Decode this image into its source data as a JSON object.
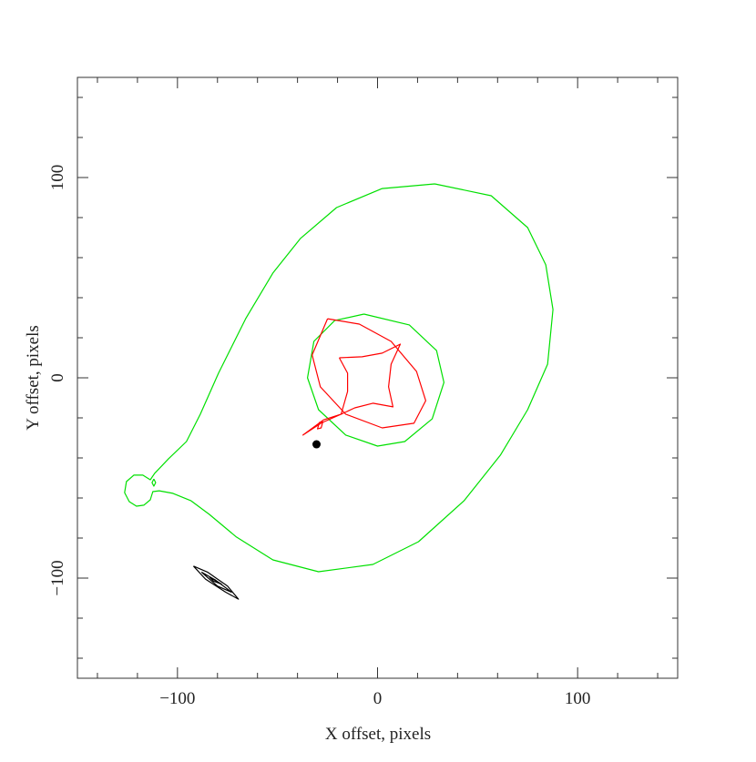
{
  "chart_data": {
    "type": "line",
    "xlabel": "X offset, pixels",
    "ylabel": "Y offset, pixels",
    "xlim": [
      -150,
      150
    ],
    "ylim": [
      -150,
      150
    ],
    "xticks": [
      {
        "value": -100,
        "label": "−100"
      },
      0,
      100
    ],
    "yticks": [
      {
        "value": -100,
        "label": "−100"
      },
      0,
      100
    ],
    "xminorticks": [
      -140,
      -120,
      -80,
      -60,
      -40,
      -20,
      20,
      40,
      60,
      80,
      120,
      140
    ],
    "yminorticks": [
      -140,
      -120,
      -80,
      -60,
      -40,
      -20,
      20,
      40,
      60,
      80,
      120,
      140
    ],
    "series": [
      {
        "color": "#00e000",
        "x": [
          28.6,
          56.8,
          75,
          84.1,
          87.7,
          85,
          75,
          61.4,
          43.2,
          20.5,
          -2.3,
          -29.5,
          -52.3,
          -70.5,
          -84.1,
          -93.2,
          -102.3,
          -109.1,
          -112.3,
          -113.6,
          -116.8,
          -120.5,
          -124.1,
          -126.4,
          -125.5,
          -121.8,
          -117.3,
          -113.6,
          -111.4,
          -104.5,
          -95.5,
          -88.6,
          -79.5,
          -65.9,
          -52.3,
          -38.6,
          -20.5,
          2.3,
          28.6
        ],
        "y": [
          96.8,
          90.9,
          75,
          56.4,
          34.1,
          6.8,
          -15.9,
          -38.6,
          -61.4,
          -81.8,
          -93.2,
          -96.8,
          -90.9,
          -79.5,
          -68.2,
          -61.4,
          -57.7,
          -56.4,
          -56.8,
          -60.9,
          -63.6,
          -64.1,
          -61.8,
          -57.3,
          -51.8,
          -48.6,
          -48.6,
          -50.9,
          -47.7,
          -40.5,
          -31.8,
          -18.2,
          2.3,
          29.5,
          52.3,
          69.5,
          85,
          94.5,
          96.8
        ]
      },
      {
        "color": "#00e000",
        "x": [
          -111.8,
          -110.9,
          -111.8,
          -112.7,
          -111.8
        ],
        "y": [
          -50.5,
          -52.3,
          -54.1,
          -52.3,
          -50.5
        ]
      },
      {
        "color": "#00e000",
        "x": [
          -6.8,
          15.9,
          29.5,
          33.2,
          27.3,
          13.6,
          0,
          -15.9,
          -29.5,
          -35,
          -31.8,
          -21.4,
          -6.8
        ],
        "y": [
          31.8,
          26.4,
          13.6,
          -2.3,
          -20.5,
          -31.8,
          -34.1,
          -28.6,
          -15.9,
          0,
          18.2,
          28.6,
          31.8
        ]
      },
      {
        "color": "#ff0000",
        "x": [
          -25,
          -9.1,
          6.8,
          19.5,
          24.1,
          18.2,
          2.3,
          -15.9,
          -28.6,
          -32.7,
          -25
        ],
        "y": [
          29.5,
          26.8,
          18.2,
          3.2,
          -11.4,
          -22.7,
          -25,
          -18.2,
          -4.5,
          11.4,
          29.5
        ]
      },
      {
        "color": "#ff0000",
        "x": [
          -19.1,
          -7.7,
          2.3,
          11.4,
          6.8,
          5.5,
          7.7,
          -2.3,
          -11.4,
          -18.2,
          -15,
          -15,
          -19.1
        ],
        "y": [
          10,
          10.5,
          12.3,
          16.8,
          6.8,
          -4.5,
          -14.5,
          -12.7,
          -15,
          -18.2,
          -6.8,
          2.3,
          10
        ]
      },
      {
        "color": "#ff0000",
        "x": [
          -18.2,
          -28,
          -37.3,
          -27,
          -18.2
        ],
        "y": [
          -18.2,
          -22.5,
          -28.6,
          -21,
          -18.2
        ]
      },
      {
        "color": "#ff0000",
        "x": [
          -27.3,
          -28.2,
          -30,
          -29.1,
          -27.3
        ],
        "y": [
          -21.8,
          -25,
          -25.5,
          -22.3,
          -21.8
        ]
      },
      {
        "color": "#000000",
        "x": [
          -92,
          -85,
          -75,
          -69.5,
          -76,
          -86,
          -92
        ],
        "y": [
          -94,
          -97,
          -104,
          -110.5,
          -107,
          -100.5,
          -94
        ]
      },
      {
        "color": "#000000",
        "x": [
          -88,
          -81,
          -73,
          -80,
          -88
        ],
        "y": [
          -97,
          -101,
          -107,
          -104,
          -97
        ]
      },
      {
        "color": "#000000",
        "x": [
          -84,
          -78,
          -82,
          -84
        ],
        "y": [
          -99.5,
          -103,
          -101.5,
          -99.5
        ]
      },
      {
        "color": "#000000",
        "marker": true,
        "x": [
          -30.5
        ],
        "y": [
          -33.2
        ]
      }
    ]
  }
}
